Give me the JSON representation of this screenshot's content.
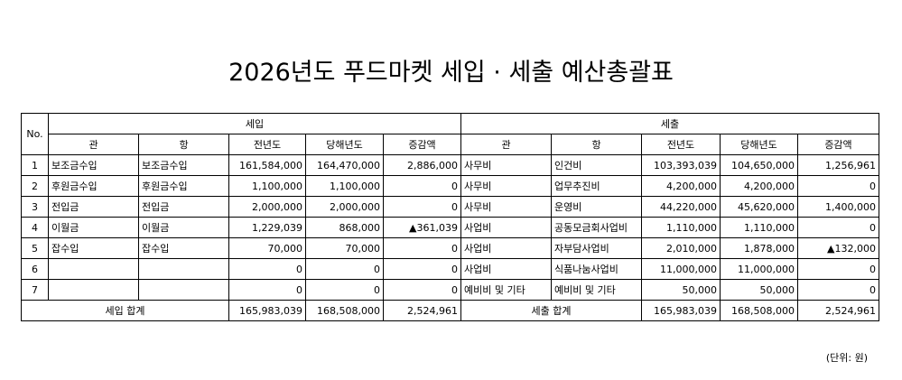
{
  "header": {
    "title": "2026년도 푸드마켓 세입 · 세출 예산총괄표"
  },
  "table": {
    "columns": {
      "no": "No.",
      "income": "세입",
      "expense": "세출",
      "gwan": "관",
      "hang": "항",
      "prev": "전년도",
      "curr": "당해년도",
      "diff": "증감액"
    },
    "rows": [
      {
        "no": "1",
        "income": {
          "gwan": "보조금수입",
          "hang": "보조금수입",
          "prev": "161,584,000",
          "curr": "164,470,000",
          "diff": "2,886,000"
        },
        "expense": {
          "gwan": "사무비",
          "hang": "인건비",
          "prev": "103,393,039",
          "curr": "104,650,000",
          "diff": "1,256,961"
        }
      },
      {
        "no": "2",
        "income": {
          "gwan": "후원금수입",
          "hang": "후원금수입",
          "prev": "1,100,000",
          "curr": "1,100,000",
          "diff": "0"
        },
        "expense": {
          "gwan": "사무비",
          "hang": "업무추진비",
          "prev": "4,200,000",
          "curr": "4,200,000",
          "diff": "0"
        }
      },
      {
        "no": "3",
        "income": {
          "gwan": "전입금",
          "hang": "전입금",
          "prev": "2,000,000",
          "curr": "2,000,000",
          "diff": "0"
        },
        "expense": {
          "gwan": "사무비",
          "hang": "운영비",
          "prev": "44,220,000",
          "curr": "45,620,000",
          "diff": "1,400,000"
        }
      },
      {
        "no": "4",
        "income": {
          "gwan": "이월금",
          "hang": "이월금",
          "prev": "1,229,039",
          "curr": "868,000",
          "diff": "▲361,039"
        },
        "expense": {
          "gwan": "사업비",
          "hang": "공동모금회사업비",
          "prev": "1,110,000",
          "curr": "1,110,000",
          "diff": "0"
        }
      },
      {
        "no": "5",
        "income": {
          "gwan": "잡수입",
          "hang": "잡수입",
          "prev": "70,000",
          "curr": "70,000",
          "diff": "0"
        },
        "expense": {
          "gwan": "사업비",
          "hang": "자부담사업비",
          "prev": "2,010,000",
          "curr": "1,878,000",
          "diff": "▲132,000"
        }
      },
      {
        "no": "6",
        "income": {
          "prev": "0",
          "curr": "0",
          "diff": "0"
        },
        "expense": {
          "gwan": "사업비",
          "hang": "식품나눔사업비",
          "prev": "11,000,000",
          "curr": "11,000,000",
          "diff": "0"
        }
      },
      {
        "no": "7",
        "income": {
          "prev": "0",
          "curr": "0",
          "diff": "0"
        },
        "expense": {
          "gwan": "예비비 및 기타",
          "hang": "예비비 및 기타",
          "prev": "50,000",
          "curr": "50,000",
          "diff": "0"
        }
      }
    ],
    "total": {
      "income": {
        "label": "세입 합계",
        "prev": "165,983,039",
        "curr": "168,508,000",
        "diff": "2,524,961"
      },
      "expense": {
        "label": "세출 합계",
        "prev": "165,983,039",
        "curr": "168,508,000",
        "diff": "2,524,961"
      }
    }
  },
  "footer": {
    "unit": "(단위: 원)"
  }
}
